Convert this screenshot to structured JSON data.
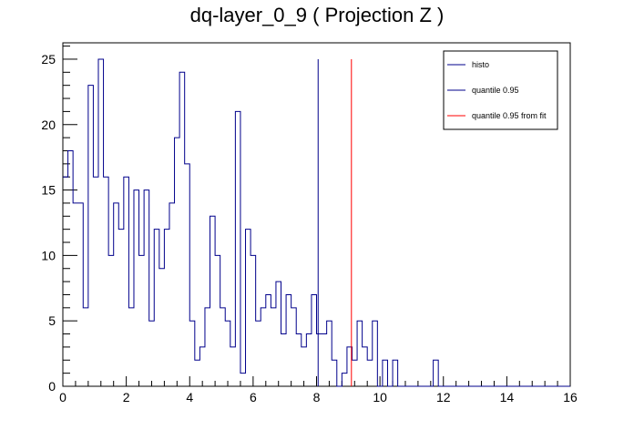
{
  "chart_data": {
    "type": "line",
    "title": "dq-layer_0_9 ( Projection Z )",
    "xlabel": "",
    "ylabel": "",
    "xlim": [
      0,
      16
    ],
    "ylim": [
      0,
      26.25
    ],
    "x_ticks": [
      0,
      2,
      4,
      6,
      8,
      10,
      12,
      14,
      16
    ],
    "y_ticks": [
      0,
      5,
      10,
      15,
      20,
      25
    ],
    "grid": false,
    "legend_position": "top-right",
    "bin_width": 0.16,
    "series": [
      {
        "name": "histo",
        "style": "histogram",
        "color": "#00008b",
        "bins_start": 0,
        "values": [
          16,
          18,
          14,
          14,
          6,
          23,
          16,
          25,
          16,
          10,
          14,
          12,
          16,
          6,
          15,
          10,
          15,
          5,
          12,
          9,
          12,
          14,
          19,
          24,
          17,
          5,
          2,
          3,
          6,
          13,
          10,
          6,
          5,
          3,
          21,
          1,
          12,
          10,
          5,
          6,
          7,
          6,
          8,
          4,
          7,
          6,
          4,
          3,
          4,
          7,
          4,
          4,
          5,
          2,
          0,
          1,
          3,
          2,
          5,
          3,
          2,
          5,
          0,
          2,
          0,
          2,
          0,
          0,
          0,
          0,
          0,
          0,
          0,
          2,
          0,
          0,
          0,
          0,
          0,
          0,
          0,
          0,
          0,
          0,
          0,
          0,
          0,
          0,
          0,
          0,
          0,
          0,
          0,
          0,
          0,
          0,
          0,
          0,
          0,
          0
        ]
      },
      {
        "name": "quantile 0.95",
        "style": "vline",
        "color": "#00008b",
        "x": 8.05,
        "y": 25
      },
      {
        "name": "quantile 0.95 from fit",
        "style": "vline",
        "color": "#ff0000",
        "x": 9.1,
        "y": 25
      }
    ]
  }
}
